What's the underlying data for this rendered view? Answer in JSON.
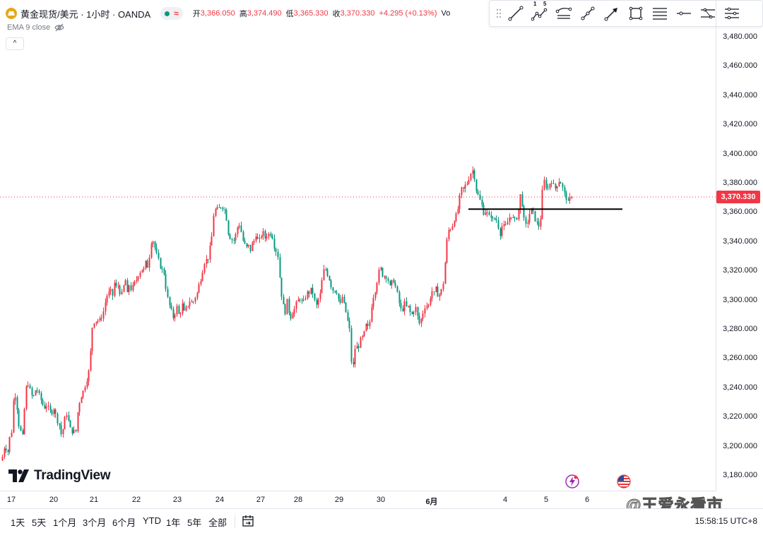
{
  "header": {
    "symbol_title": "黄金现货/美元 · 1小时 · OANDA",
    "ohlc": [
      {
        "key": "开",
        "value": "3,366.050"
      },
      {
        "key": "高",
        "value": "3,374.490"
      },
      {
        "key": "低",
        "value": "3,365.330"
      },
      {
        "key": "收",
        "value": "3,370.330"
      }
    ],
    "change": "+4.295 (+0.13%)",
    "vol_cut": "Vo",
    "indicator": "EMA 9 close",
    "collapse_label": "^"
  },
  "drawing_toolbar": {
    "tools": [
      "trend-line-icon",
      "elliott-wave-icon",
      "parallel-channel-icon",
      "info-line-icon",
      "arrow-line-icon",
      "rectangle-icon",
      "fib-retracement-icon",
      "horizontal-ray-icon",
      "xabcd-pattern-icon",
      "cyclic-lines-icon"
    ],
    "elliott_labels": [
      "1",
      "5"
    ]
  },
  "price_scale": {
    "ticks": [
      "3,480.000",
      "3,460.000",
      "3,440.000",
      "3,420.000",
      "3,400.000",
      "3,380.000",
      "3,360.000",
      "3,340.000",
      "3,320.000",
      "3,300.000",
      "3,280.000",
      "3,260.000",
      "3,240.000",
      "3,220.000",
      "3,200.000",
      "3,180.000"
    ],
    "last_price": "3,370.330"
  },
  "time_scale": {
    "ticks": [
      "17",
      "20",
      "21",
      "22",
      "23",
      "24",
      "27",
      "28",
      "29",
      "30",
      "6月",
      "4",
      "5",
      "6"
    ]
  },
  "bottom_bar": {
    "ranges": [
      "1天",
      "5天",
      "1个月",
      "3个月",
      "6个月",
      "YTD",
      "1年",
      "5年",
      "全部"
    ],
    "clock": "15:58:15 UTC+8"
  },
  "logo_text": "TradingView",
  "watermark_text": "@王爱永看市",
  "colors": {
    "up": "#f23645",
    "down": "#089981",
    "last_price": "#f23645",
    "brand_logo": "#131722"
  },
  "chart_data": {
    "type": "candlestick",
    "instrument": "黄金现货/美元",
    "timeframe": "1小时",
    "ylim": [
      3170,
      3490
    ],
    "horizontal_line": 3362,
    "last_price": 3370.33,
    "path": [
      [
        0,
        3185
      ],
      [
        6,
        3200
      ],
      [
        11,
        3196
      ],
      [
        13,
        3205
      ],
      [
        16,
        3210
      ],
      [
        19,
        3234
      ],
      [
        22,
        3235
      ],
      [
        26,
        3215
      ],
      [
        29,
        3210
      ],
      [
        32,
        3206
      ],
      [
        35,
        3232
      ],
      [
        38,
        3245
      ],
      [
        41,
        3240
      ],
      [
        46,
        3232
      ],
      [
        51,
        3240
      ],
      [
        57,
        3232
      ],
      [
        62,
        3226
      ],
      [
        66,
        3228
      ],
      [
        72,
        3222
      ],
      [
        76,
        3226
      ],
      [
        80,
        3218
      ],
      [
        84,
        3214
      ],
      [
        87,
        3206
      ],
      [
        91,
        3218
      ],
      [
        94,
        3222
      ],
      [
        100,
        3210
      ],
      [
        104,
        3210
      ],
      [
        107,
        3210
      ],
      [
        110,
        3225
      ],
      [
        113,
        3232
      ],
      [
        116,
        3236
      ],
      [
        118,
        3238
      ],
      [
        121,
        3243
      ],
      [
        124,
        3248
      ],
      [
        127,
        3255
      ],
      [
        129,
        3278
      ],
      [
        132,
        3285
      ],
      [
        138,
        3286
      ],
      [
        141,
        3286
      ],
      [
        145,
        3290
      ],
      [
        147,
        3294
      ],
      [
        150,
        3302
      ],
      [
        154,
        3305
      ],
      [
        157,
        3306
      ],
      [
        159,
        3303
      ],
      [
        161,
        3312
      ],
      [
        165,
        3308
      ],
      [
        167,
        3310
      ],
      [
        171,
        3302
      ],
      [
        174,
        3308
      ],
      [
        177,
        3314
      ],
      [
        180,
        3303
      ],
      [
        183,
        3312
      ],
      [
        186,
        3305
      ],
      [
        188,
        3310
      ],
      [
        193,
        3314
      ],
      [
        196,
        3318
      ],
      [
        199,
        3320
      ],
      [
        202,
        3322
      ],
      [
        204,
        3320
      ],
      [
        206,
        3326
      ],
      [
        209,
        3322
      ],
      [
        211,
        3330
      ],
      [
        214,
        3341
      ],
      [
        217,
        3340
      ],
      [
        220,
        3333
      ],
      [
        224,
        3327
      ],
      [
        227,
        3322
      ],
      [
        230,
        3320
      ],
      [
        232,
        3318
      ],
      [
        234,
        3310
      ],
      [
        236,
        3302
      ],
      [
        238,
        3300
      ],
      [
        240,
        3295
      ],
      [
        242,
        3293
      ],
      [
        244,
        3286
      ],
      [
        246,
        3291
      ],
      [
        248,
        3291
      ],
      [
        250,
        3295
      ],
      [
        252,
        3291
      ],
      [
        254,
        3288
      ],
      [
        256,
        3294
      ],
      [
        258,
        3297
      ],
      [
        260,
        3291
      ],
      [
        263,
        3294
      ],
      [
        266,
        3297
      ],
      [
        269,
        3300
      ],
      [
        272,
        3297
      ],
      [
        276,
        3302
      ],
      [
        279,
        3305
      ],
      [
        282,
        3312
      ],
      [
        285,
        3316
      ],
      [
        288,
        3325
      ],
      [
        291,
        3327
      ],
      [
        294,
        3328
      ],
      [
        297,
        3336
      ],
      [
        300,
        3345
      ],
      [
        302,
        3358
      ],
      [
        305,
        3362
      ],
      [
        309,
        3362
      ],
      [
        312,
        3364
      ],
      [
        316,
        3363
      ],
      [
        319,
        3360
      ],
      [
        323,
        3345
      ],
      [
        325,
        3343
      ],
      [
        330,
        3340
      ],
      [
        333,
        3344
      ],
      [
        336,
        3350
      ],
      [
        339,
        3352
      ],
      [
        343,
        3341
      ],
      [
        346,
        3338
      ],
      [
        348,
        3335
      ],
      [
        351,
        3338
      ],
      [
        353,
        3332
      ],
      [
        356,
        3338
      ],
      [
        359,
        3340
      ],
      [
        362,
        3345
      ],
      [
        364,
        3341
      ],
      [
        367,
        3341
      ],
      [
        370,
        3345
      ],
      [
        372,
        3346
      ],
      [
        375,
        3342
      ],
      [
        377,
        3344
      ],
      [
        380,
        3345
      ],
      [
        384,
        3345
      ],
      [
        386,
        3342
      ],
      [
        388,
        3336
      ],
      [
        391,
        3333
      ],
      [
        393,
        3330
      ],
      [
        395,
        3320
      ],
      [
        397,
        3305
      ],
      [
        399,
        3302
      ],
      [
        401,
        3295
      ],
      [
        403,
        3290
      ],
      [
        405,
        3298
      ],
      [
        407,
        3300
      ],
      [
        409,
        3290
      ],
      [
        411,
        3288
      ],
      [
        413,
        3291
      ],
      [
        417,
        3294
      ],
      [
        420,
        3299
      ],
      [
        425,
        3301
      ],
      [
        428,
        3297
      ],
      [
        432,
        3302
      ],
      [
        435,
        3305
      ],
      [
        438,
        3305
      ],
      [
        441,
        3308
      ],
      [
        444,
        3301
      ],
      [
        447,
        3295
      ],
      [
        450,
        3300
      ],
      [
        453,
        3304
      ],
      [
        456,
        3315
      ],
      [
        458,
        3320
      ],
      [
        461,
        3321
      ],
      [
        464,
        3316
      ],
      [
        467,
        3313
      ],
      [
        469,
        3308
      ],
      [
        472,
        3306
      ],
      [
        476,
        3306
      ],
      [
        479,
        3300
      ],
      [
        482,
        3296
      ],
      [
        484,
        3302
      ],
      [
        486,
        3298
      ],
      [
        489,
        3292
      ],
      [
        491,
        3287
      ],
      [
        493,
        3283
      ],
      [
        495,
        3278
      ],
      [
        497,
        3258
      ],
      [
        499,
        3252
      ],
      [
        501,
        3262
      ],
      [
        503,
        3270
      ],
      [
        506,
        3266
      ],
      [
        509,
        3271
      ],
      [
        512,
        3276
      ],
      [
        514,
        3270
      ],
      [
        516,
        3282
      ],
      [
        519,
        3283
      ],
      [
        521,
        3280
      ],
      [
        523,
        3285
      ],
      [
        526,
        3298
      ],
      [
        529,
        3304
      ],
      [
        532,
        3308
      ],
      [
        535,
        3318
      ],
      [
        538,
        3322
      ],
      [
        541,
        3317
      ],
      [
        545,
        3316
      ],
      [
        548,
        3316
      ],
      [
        551,
        3308
      ],
      [
        554,
        3312
      ],
      [
        557,
        3313
      ],
      [
        560,
        3308
      ],
      [
        563,
        3302
      ],
      [
        566,
        3294
      ],
      [
        569,
        3292
      ],
      [
        572,
        3298
      ],
      [
        575,
        3295
      ],
      [
        578,
        3295
      ],
      [
        581,
        3290
      ],
      [
        584,
        3290
      ],
      [
        587,
        3296
      ],
      [
        590,
        3291
      ],
      [
        592,
        3282
      ],
      [
        594,
        3285
      ],
      [
        597,
        3288
      ],
      [
        600,
        3295
      ],
      [
        603,
        3296
      ],
      [
        606,
        3296
      ],
      [
        608,
        3298
      ],
      [
        610,
        3308
      ],
      [
        612,
        3305
      ],
      [
        614,
        3304
      ],
      [
        617,
        3308
      ],
      [
        620,
        3302
      ],
      [
        623,
        3305
      ],
      [
        626,
        3308
      ],
      [
        628,
        3315
      ],
      [
        630,
        3328
      ],
      [
        632,
        3340
      ],
      [
        635,
        3348
      ],
      [
        638,
        3349
      ],
      [
        641,
        3352
      ],
      [
        643,
        3356
      ],
      [
        646,
        3358
      ],
      [
        649,
        3365
      ],
      [
        652,
        3376
      ],
      [
        655,
        3375
      ],
      [
        658,
        3378
      ],
      [
        661,
        3380
      ],
      [
        664,
        3384
      ],
      [
        667,
        3388
      ],
      [
        670,
        3389
      ],
      [
        673,
        3376
      ],
      [
        676,
        3372
      ],
      [
        679,
        3368
      ],
      [
        682,
        3364
      ],
      [
        685,
        3358
      ],
      [
        688,
        3362
      ],
      [
        691,
        3356
      ],
      [
        694,
        3358
      ],
      [
        698,
        3354
      ],
      [
        701,
        3356
      ],
      [
        704,
        3353
      ],
      [
        707,
        3344
      ],
      [
        709,
        3348
      ],
      [
        711,
        3352
      ],
      [
        714,
        3349
      ],
      [
        718,
        3353
      ],
      [
        721,
        3357
      ],
      [
        724,
        3358
      ],
      [
        727,
        3354
      ],
      [
        730,
        3355
      ],
      [
        733,
        3359
      ],
      [
        736,
        3372
      ],
      [
        739,
        3365
      ],
      [
        742,
        3352
      ],
      [
        745,
        3350
      ],
      [
        748,
        3357
      ],
      [
        751,
        3362
      ],
      [
        754,
        3360
      ],
      [
        757,
        3355
      ],
      [
        760,
        3352
      ],
      [
        763,
        3350
      ],
      [
        766,
        3360
      ],
      [
        768,
        3380
      ],
      [
        771,
        3382
      ],
      [
        774,
        3374
      ],
      [
        777,
        3379
      ],
      [
        780,
        3382
      ],
      [
        783,
        3378
      ],
      [
        786,
        3376
      ],
      [
        789,
        3380
      ],
      [
        792,
        3382
      ],
      [
        795,
        3378
      ],
      [
        798,
        3373
      ],
      [
        801,
        3370
      ],
      [
        804,
        3366
      ],
      [
        807,
        3368
      ],
      [
        810,
        3371
      ]
    ]
  }
}
